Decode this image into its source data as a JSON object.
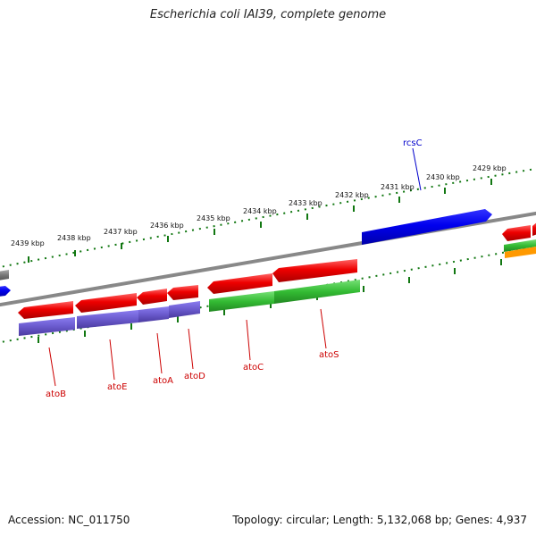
{
  "title": "Escherichia coli IAI39, complete genome",
  "footer": {
    "accession": "Accession: NC_011750",
    "summary": "Topology: circular; Length: 5,132,068 bp; Genes: 4,937"
  },
  "ticks": [
    "2439 kbp",
    "2438 kbp",
    "2437 kbp",
    "2436 kbp",
    "2435 kbp",
    "2434 kbp",
    "2433 kbp",
    "2432 kbp",
    "2431 kbp",
    "2430 kbp",
    "2429 kbp"
  ],
  "gene_labels": {
    "rcsC": "rcsC",
    "atoB": "atoB",
    "atoE": "atoE",
    "atoA": "atoA",
    "atoD": "atoD",
    "atoC": "atoC",
    "atoS": "atoS"
  },
  "colors": {
    "forward_cds": "#0000ee",
    "reverse_cds": "#ee0000",
    "cog_purple": "#6a5acd",
    "cog_green": "#33bb33",
    "cog_orange": "#ff9900",
    "backbone": "#888888",
    "ticks": "#117711",
    "label_red": "#cc0000",
    "label_blue": "#0000cc"
  }
}
